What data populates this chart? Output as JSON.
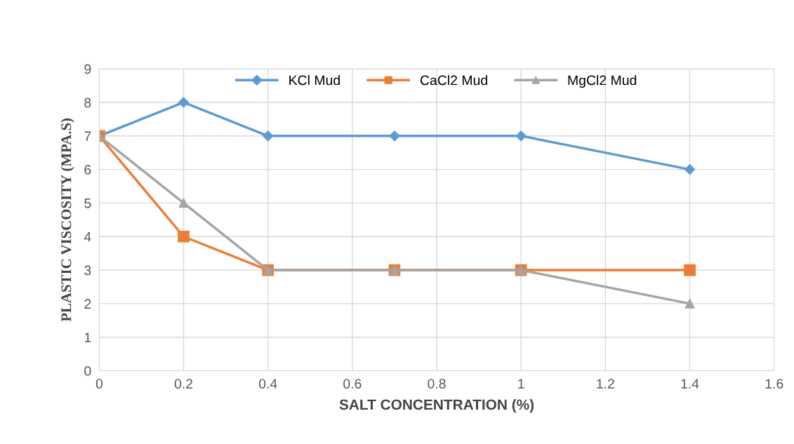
{
  "chart_data": {
    "type": "line",
    "xlabel": "SALT CONCENTRATION (%)",
    "ylabel": "PLASTIC VISCOSITY (MPA.S)",
    "x": [
      0,
      0.2,
      0.4,
      0.7,
      1,
      1.4
    ],
    "series": [
      {
        "name": "KCl Mud",
        "color": "#5b9bd5",
        "marker": "diamond",
        "values": [
          7,
          8,
          7,
          7,
          7,
          6
        ]
      },
      {
        "name": "CaCl2 Mud",
        "color": "#ed7d31",
        "marker": "square",
        "values": [
          7,
          4,
          3,
          3,
          3,
          3
        ]
      },
      {
        "name": "MgCl2 Mud",
        "color": "#a5a5a5",
        "marker": "triangle",
        "values": [
          7,
          5,
          3,
          3,
          3,
          2
        ]
      }
    ],
    "xlim": [
      0,
      1.6
    ],
    "xticks": [
      0,
      0.2,
      0.4,
      0.6,
      0.8,
      1,
      1.2,
      1.4,
      1.6
    ],
    "ylim": [
      0,
      9
    ],
    "yticks": [
      0,
      1,
      2,
      3,
      4,
      5,
      6,
      7,
      8,
      9
    ],
    "grid": true,
    "legend": "top",
    "line_style": "solid"
  }
}
